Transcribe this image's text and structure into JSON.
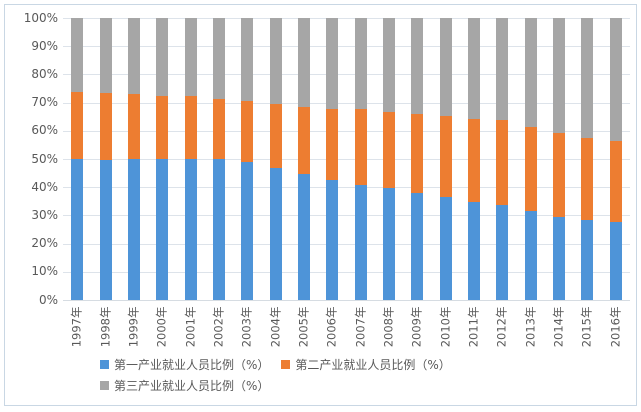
{
  "chart_data": {
    "type": "bar",
    "stacked": true,
    "title": "",
    "xlabel": "",
    "ylabel": "",
    "ylim": [
      0,
      100
    ],
    "grid": true,
    "legend_position": "bottom",
    "y_ticks_top_to_bottom": [
      "100%",
      "90%",
      "80%",
      "70%",
      "60%",
      "50%",
      "40%",
      "30%",
      "20%",
      "10%",
      "0%"
    ],
    "categories": [
      "1997年",
      "1998年",
      "1999年",
      "2000年",
      "2001年",
      "2002年",
      "2003年",
      "2004年",
      "2005年",
      "2006年",
      "2007年",
      "2008年",
      "2009年",
      "2010年",
      "2011年",
      "2012年",
      "2013年",
      "2014年",
      "2015年",
      "2016年"
    ],
    "series": [
      {
        "name": "第一产业就业人员比例（%）",
        "color": "#4E94D8",
        "values": [
          49.9,
          49.8,
          50.1,
          50.0,
          50.0,
          50.0,
          49.1,
          46.9,
          44.8,
          42.6,
          40.8,
          39.6,
          38.1,
          36.7,
          34.8,
          33.6,
          31.4,
          29.5,
          28.3,
          27.7
        ]
      },
      {
        "name": "第二产业就业人员比例（%）",
        "color": "#ED7D31",
        "values": [
          23.7,
          23.5,
          23.0,
          22.5,
          22.3,
          21.4,
          21.6,
          22.5,
          23.8,
          25.2,
          26.8,
          27.2,
          27.8,
          28.7,
          29.5,
          30.3,
          30.1,
          29.9,
          29.3,
          28.8
        ]
      },
      {
        "name": "第三产业就业人员比例（%）",
        "color": "#A6A6A6",
        "values": [
          26.4,
          26.7,
          26.9,
          27.5,
          27.7,
          28.6,
          29.3,
          30.6,
          31.4,
          32.2,
          32.4,
          33.2,
          34.1,
          34.6,
          35.7,
          36.1,
          38.5,
          40.6,
          42.4,
          43.5
        ]
      }
    ],
    "legend_rows": [
      [
        0,
        1
      ],
      [
        2
      ]
    ]
  },
  "colors": {
    "grid": "#dde3ea",
    "axis_line": "#d6dce2",
    "axis_text": "#595959",
    "frame_border": "#c9d7e4",
    "background": "#ffffff"
  }
}
